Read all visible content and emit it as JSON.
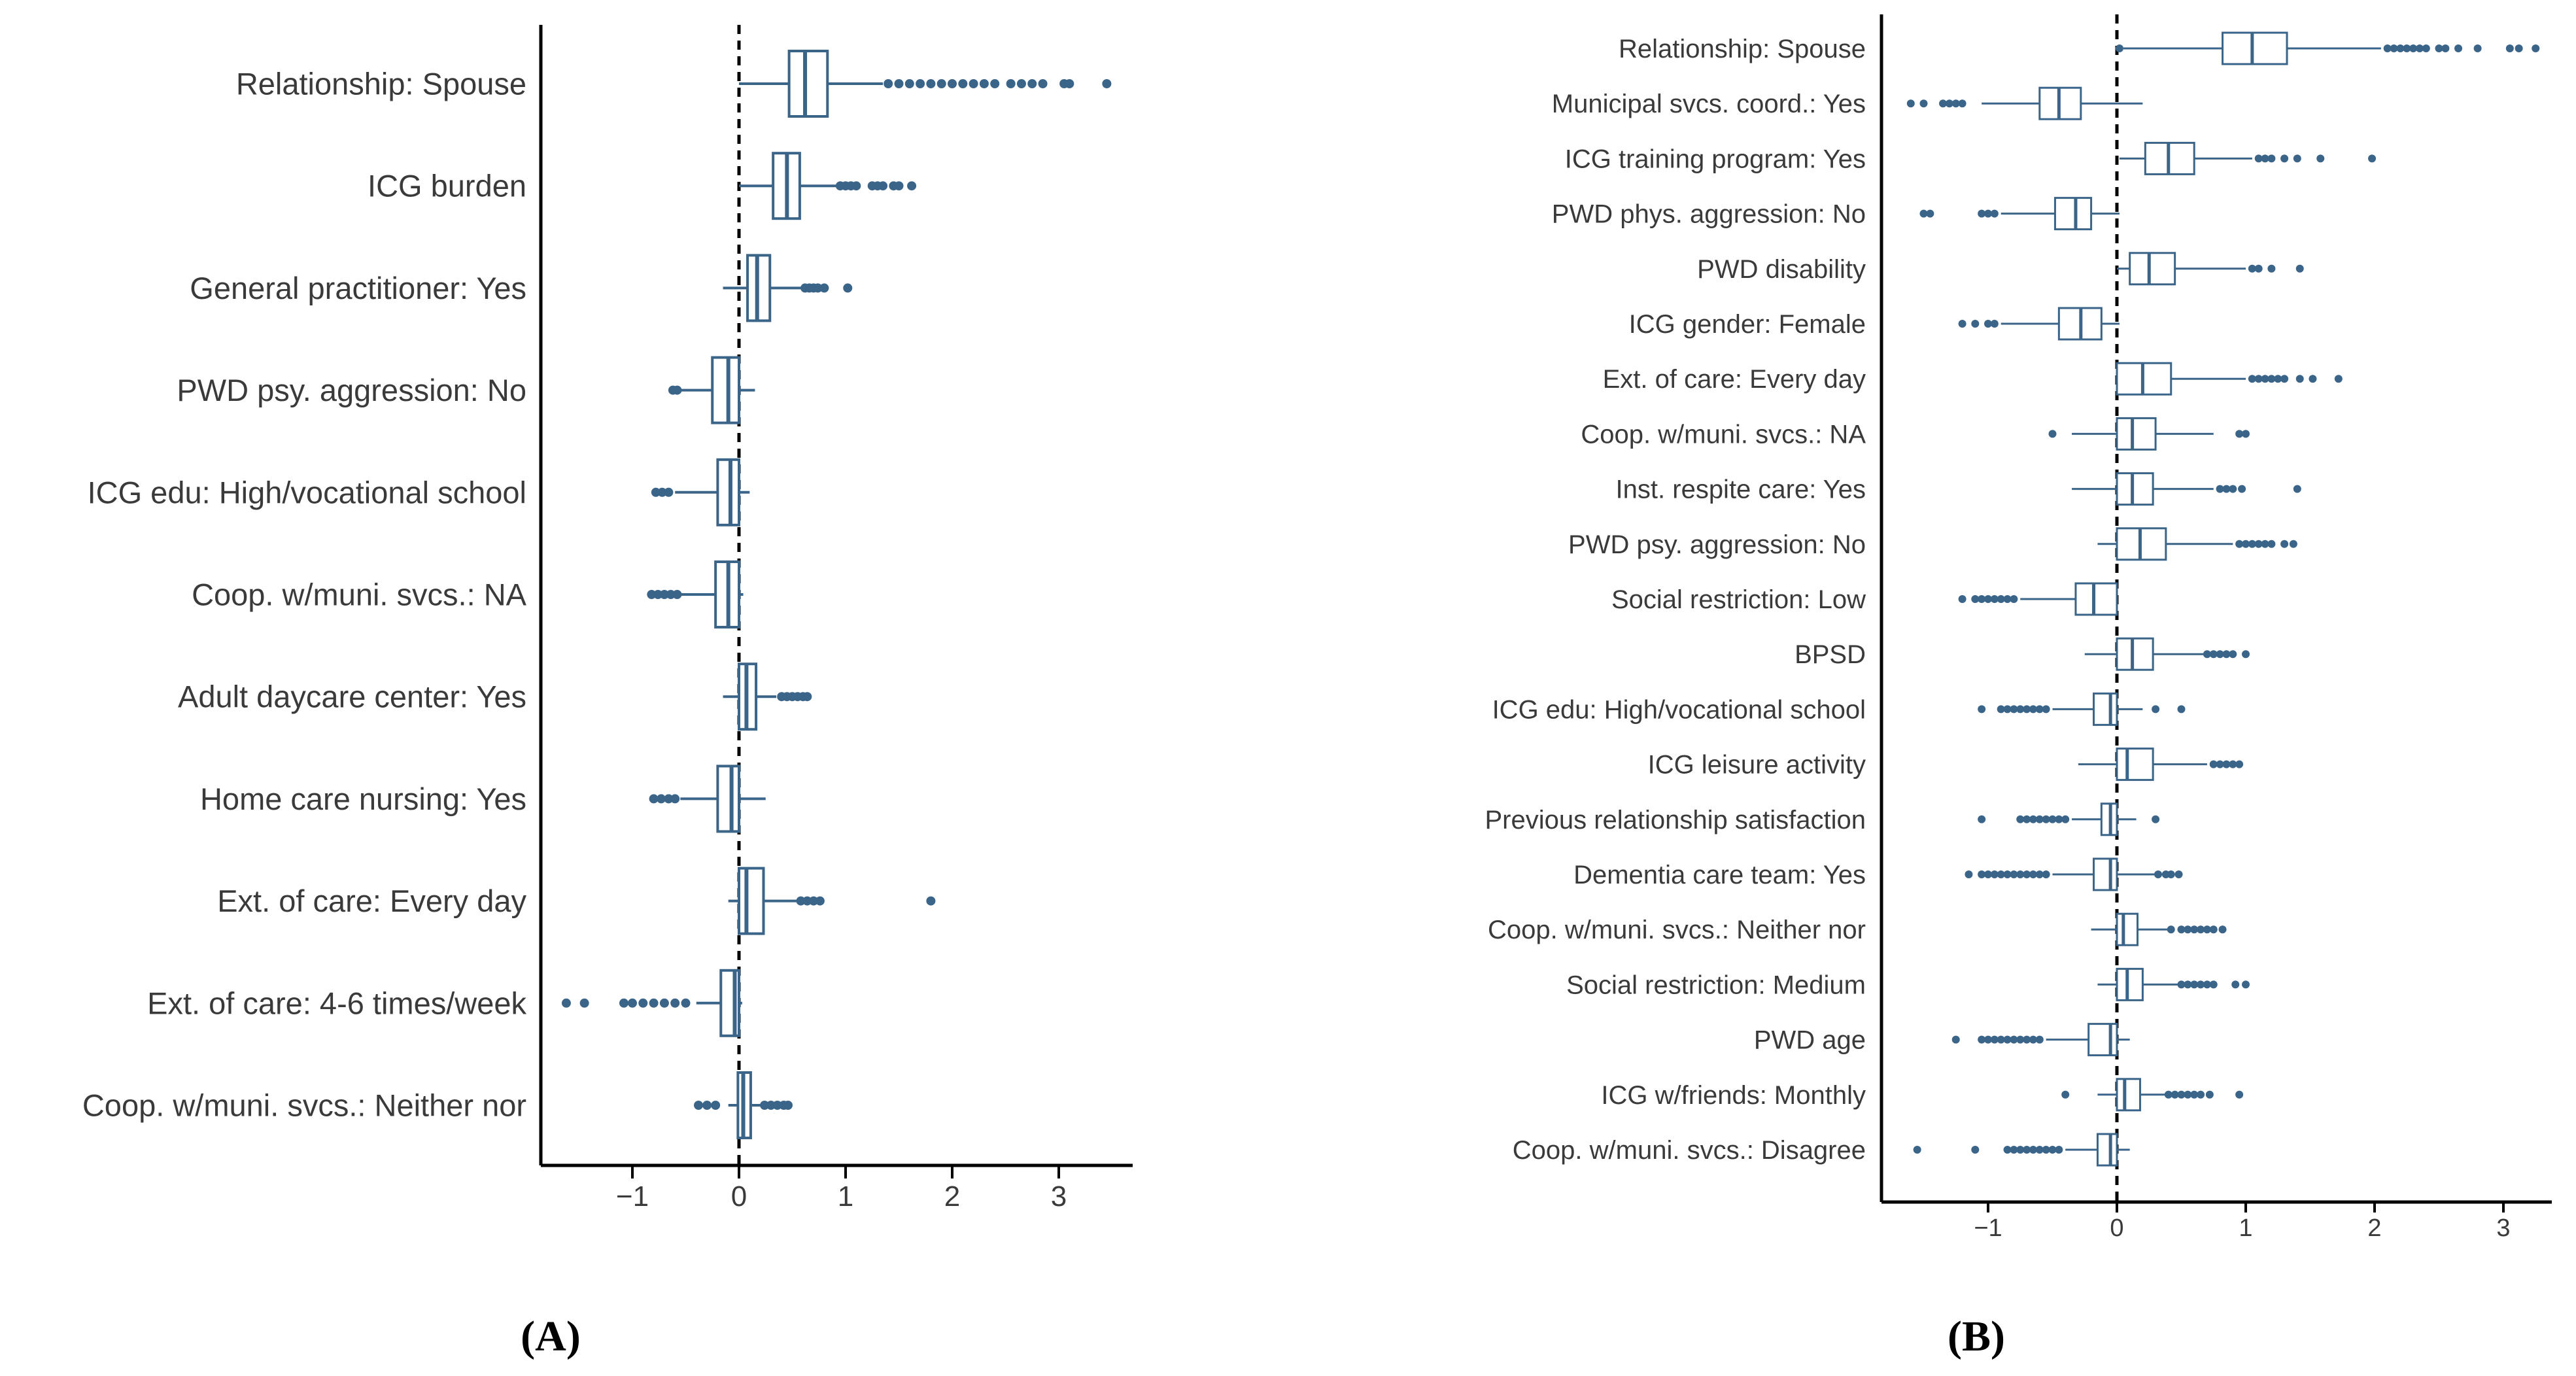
{
  "colors": {
    "box": "#3b6489",
    "fill": "#ffffff",
    "axis": "#000000",
    "text": "#3a3a3a"
  },
  "panels": [
    {
      "label": "(A)",
      "label_letter": "A"
    },
    {
      "label": "(B)",
      "label_letter": "B"
    }
  ],
  "chart_data": [
    {
      "type": "box",
      "panel": "A",
      "title": "",
      "xlabel": "",
      "ylabel": "",
      "xlim": [
        -1.85,
        3.7
      ],
      "xticks": [
        -1,
        0,
        1,
        2,
        3
      ],
      "xtick_labels": [
        "−1",
        "0",
        "1",
        "2",
        "3"
      ],
      "reference_line_x": 0,
      "categories": [
        "Relationship: Spouse",
        "ICG burden",
        "General practitioner: Yes",
        "PWD psy. aggression: No",
        "ICG edu: High/vocational school",
        "Coop. w/muni. svcs.: NA",
        "Adult daycare center: Yes",
        "Home care nursing: Yes",
        "Ext. of care: Every day",
        "Ext. of care: 4-6 times/week",
        "Coop. w/muni. svcs.: Neither nor"
      ],
      "boxes": [
        {
          "wmin": 0.0,
          "q1": 0.47,
          "median": 0.62,
          "q3": 0.83,
          "wmax": 1.35,
          "outliers": [
            1.4,
            1.5,
            1.6,
            1.7,
            1.8,
            1.9,
            2.0,
            2.1,
            2.2,
            2.3,
            2.4,
            2.55,
            2.65,
            2.75,
            2.85,
            3.05,
            3.1,
            3.45
          ]
        },
        {
          "wmin": 0.0,
          "q1": 0.32,
          "median": 0.45,
          "q3": 0.57,
          "wmax": 0.92,
          "outliers": [
            0.95,
            1.0,
            1.05,
            1.1,
            1.25,
            1.3,
            1.35,
            1.45,
            1.5,
            1.62
          ]
        },
        {
          "wmin": -0.15,
          "q1": 0.08,
          "median": 0.17,
          "q3": 0.29,
          "wmax": 0.6,
          "outliers": [
            0.62,
            0.66,
            0.7,
            0.74,
            0.8,
            1.02
          ]
        },
        {
          "wmin": -0.55,
          "q1": -0.25,
          "median": -0.1,
          "q3": 0.0,
          "wmax": 0.15,
          "outliers": [
            -0.62,
            -0.58
          ]
        },
        {
          "wmin": -0.6,
          "q1": -0.2,
          "median": -0.08,
          "q3": 0.0,
          "wmax": 0.1,
          "outliers": [
            -0.78,
            -0.72,
            -0.66
          ]
        },
        {
          "wmin": -0.55,
          "q1": -0.22,
          "median": -0.1,
          "q3": 0.0,
          "wmax": 0.04,
          "outliers": [
            -0.82,
            -0.76,
            -0.7,
            -0.64,
            -0.58
          ]
        },
        {
          "wmin": -0.15,
          "q1": 0.0,
          "median": 0.07,
          "q3": 0.16,
          "wmax": 0.35,
          "outliers": [
            0.4,
            0.45,
            0.5,
            0.55,
            0.6,
            0.64
          ]
        },
        {
          "wmin": -0.55,
          "q1": -0.2,
          "median": -0.07,
          "q3": 0.0,
          "wmax": 0.25,
          "outliers": [
            -0.8,
            -0.73,
            -0.66,
            -0.6
          ]
        },
        {
          "wmin": -0.1,
          "q1": 0.0,
          "median": 0.07,
          "q3": 0.23,
          "wmax": 0.55,
          "outliers": [
            0.58,
            0.64,
            0.7,
            0.76,
            1.8
          ]
        },
        {
          "wmin": -0.4,
          "q1": -0.17,
          "median": -0.04,
          "q3": 0.0,
          "wmax": 0.03,
          "outliers": [
            -1.62,
            -1.45,
            -1.08,
            -1.0,
            -0.9,
            -0.8,
            -0.7,
            -0.6,
            -0.5
          ]
        },
        {
          "wmin": -0.1,
          "q1": -0.01,
          "median": 0.04,
          "q3": 0.11,
          "wmax": 0.2,
          "outliers": [
            -0.38,
            -0.3,
            -0.22,
            0.24,
            0.3,
            0.36,
            0.42,
            0.46
          ]
        }
      ]
    },
    {
      "type": "box",
      "panel": "B",
      "title": "",
      "xlabel": "",
      "ylabel": "",
      "xlim": [
        -1.8,
        3.35
      ],
      "xticks": [
        -1,
        0,
        1,
        2,
        3
      ],
      "xtick_labels": [
        "−1",
        "0",
        "1",
        "2",
        "3"
      ],
      "reference_line_x": 0,
      "categories": [
        "Relationship: Spouse",
        "Municipal svcs. coord.: Yes",
        "ICG training program: Yes",
        "PWD phys. aggression: No",
        "PWD disability",
        "ICG gender: Female",
        "Ext. of care: Every day",
        "Coop. w/muni. svcs.: NA",
        "Inst. respite care: Yes",
        "PWD psy. aggression: No",
        "Social restriction: Low",
        "BPSD",
        "ICG edu: High/vocational school",
        "ICG leisure activity",
        "Previous relationship satisfaction",
        "Dementia care team: Yes",
        "Coop. w/muni. svcs.: Neither nor",
        "Social restriction: Medium",
        "PWD age",
        "ICG w/friends: Monthly",
        "Coop. w/muni. svcs.: Disagree"
      ],
      "boxes": [
        {
          "wmin": 0.05,
          "q1": 0.82,
          "median": 1.05,
          "q3": 1.32,
          "wmax": 2.05,
          "outliers": [
            0.02,
            2.1,
            2.15,
            2.2,
            2.25,
            2.3,
            2.35,
            2.4,
            2.5,
            2.55,
            2.65,
            2.8,
            3.05,
            3.12,
            3.25
          ]
        },
        {
          "wmin": -1.05,
          "q1": -0.6,
          "median": -0.45,
          "q3": -0.28,
          "wmax": 0.2,
          "outliers": [
            -1.6,
            -1.5,
            -1.35,
            -1.3,
            -1.25,
            -1.2
          ]
        },
        {
          "wmin": 0.02,
          "q1": 0.22,
          "median": 0.4,
          "q3": 0.6,
          "wmax": 1.05,
          "outliers": [
            1.1,
            1.15,
            1.2,
            1.3,
            1.4,
            1.58,
            1.98
          ]
        },
        {
          "wmin": -0.9,
          "q1": -0.48,
          "median": -0.32,
          "q3": -0.2,
          "wmax": 0.02,
          "outliers": [
            -1.5,
            -1.45,
            -1.05,
            -1.0,
            -0.95
          ]
        },
        {
          "wmin": 0.0,
          "q1": 0.1,
          "median": 0.25,
          "q3": 0.45,
          "wmax": 1.0,
          "outliers": [
            1.05,
            1.1,
            1.2,
            1.42
          ]
        },
        {
          "wmin": -0.9,
          "q1": -0.45,
          "median": -0.28,
          "q3": -0.12,
          "wmax": 0.02,
          "outliers": [
            -1.2,
            -1.1,
            -1.0,
            -0.95
          ]
        },
        {
          "wmin": 0.0,
          "q1": 0.0,
          "median": 0.2,
          "q3": 0.42,
          "wmax": 1.0,
          "outliers": [
            1.05,
            1.1,
            1.15,
            1.2,
            1.25,
            1.3,
            1.42,
            1.52,
            1.72
          ]
        },
        {
          "wmin": -0.35,
          "q1": 0.0,
          "median": 0.12,
          "q3": 0.3,
          "wmax": 0.75,
          "outliers": [
            -0.5,
            0.95,
            1.0
          ]
        },
        {
          "wmin": -0.35,
          "q1": 0.0,
          "median": 0.12,
          "q3": 0.28,
          "wmax": 0.75,
          "outliers": [
            0.8,
            0.85,
            0.9,
            0.97,
            1.4
          ]
        },
        {
          "wmin": -0.15,
          "q1": 0.0,
          "median": 0.18,
          "q3": 0.38,
          "wmax": 0.9,
          "outliers": [
            0.95,
            1.0,
            1.05,
            1.1,
            1.15,
            1.2,
            1.3,
            1.37
          ]
        },
        {
          "wmin": -0.75,
          "q1": -0.32,
          "median": -0.18,
          "q3": 0.0,
          "wmax": 0.0,
          "outliers": [
            -1.2,
            -1.1,
            -1.05,
            -1.0,
            -0.95,
            -0.9,
            -0.85,
            -0.8
          ]
        },
        {
          "wmin": -0.25,
          "q1": 0.0,
          "median": 0.12,
          "q3": 0.28,
          "wmax": 0.68,
          "outliers": [
            0.7,
            0.75,
            0.8,
            0.85,
            0.9,
            1.0
          ]
        },
        {
          "wmin": -0.5,
          "q1": -0.18,
          "median": -0.05,
          "q3": 0.0,
          "wmax": 0.2,
          "outliers": [
            -1.05,
            -0.9,
            -0.85,
            -0.8,
            -0.75,
            -0.7,
            -0.65,
            -0.6,
            -0.55,
            0.3,
            0.5
          ]
        },
        {
          "wmin": -0.3,
          "q1": 0.0,
          "median": 0.08,
          "q3": 0.28,
          "wmax": 0.7,
          "outliers": [
            0.75,
            0.8,
            0.85,
            0.9,
            0.95
          ]
        },
        {
          "wmin": -0.35,
          "q1": -0.12,
          "median": -0.05,
          "q3": 0.0,
          "wmax": 0.15,
          "outliers": [
            -1.05,
            -0.75,
            -0.7,
            -0.65,
            -0.6,
            -0.55,
            -0.5,
            -0.45,
            -0.4,
            0.3
          ]
        },
        {
          "wmin": -0.5,
          "q1": -0.18,
          "median": -0.05,
          "q3": 0.0,
          "wmax": 0.3,
          "outliers": [
            -1.15,
            -1.05,
            -1.0,
            -0.95,
            -0.9,
            -0.85,
            -0.8,
            -0.75,
            -0.7,
            -0.65,
            -0.6,
            -0.55,
            0.32,
            0.38,
            0.42,
            0.48
          ]
        },
        {
          "wmin": -0.2,
          "q1": 0.0,
          "median": 0.05,
          "q3": 0.16,
          "wmax": 0.4,
          "outliers": [
            0.42,
            0.5,
            0.55,
            0.6,
            0.65,
            0.7,
            0.75,
            0.82
          ]
        },
        {
          "wmin": -0.15,
          "q1": 0.0,
          "median": 0.08,
          "q3": 0.2,
          "wmax": 0.48,
          "outliers": [
            0.5,
            0.55,
            0.6,
            0.65,
            0.7,
            0.75,
            0.92,
            1.0
          ]
        },
        {
          "wmin": -0.55,
          "q1": -0.22,
          "median": -0.05,
          "q3": 0.0,
          "wmax": 0.1,
          "outliers": [
            -1.25,
            -1.05,
            -1.0,
            -0.95,
            -0.9,
            -0.85,
            -0.8,
            -0.75,
            -0.7,
            -0.65,
            -0.6
          ]
        },
        {
          "wmin": -0.15,
          "q1": 0.0,
          "median": 0.06,
          "q3": 0.18,
          "wmax": 0.38,
          "outliers": [
            -0.4,
            0.4,
            0.45,
            0.5,
            0.55,
            0.6,
            0.65,
            0.72,
            0.95
          ]
        },
        {
          "wmin": -0.4,
          "q1": -0.15,
          "median": -0.05,
          "q3": 0.0,
          "wmax": 0.1,
          "outliers": [
            -1.55,
            -1.1,
            -0.85,
            -0.8,
            -0.75,
            -0.7,
            -0.65,
            -0.6,
            -0.55,
            -0.5,
            -0.45
          ]
        }
      ]
    }
  ]
}
